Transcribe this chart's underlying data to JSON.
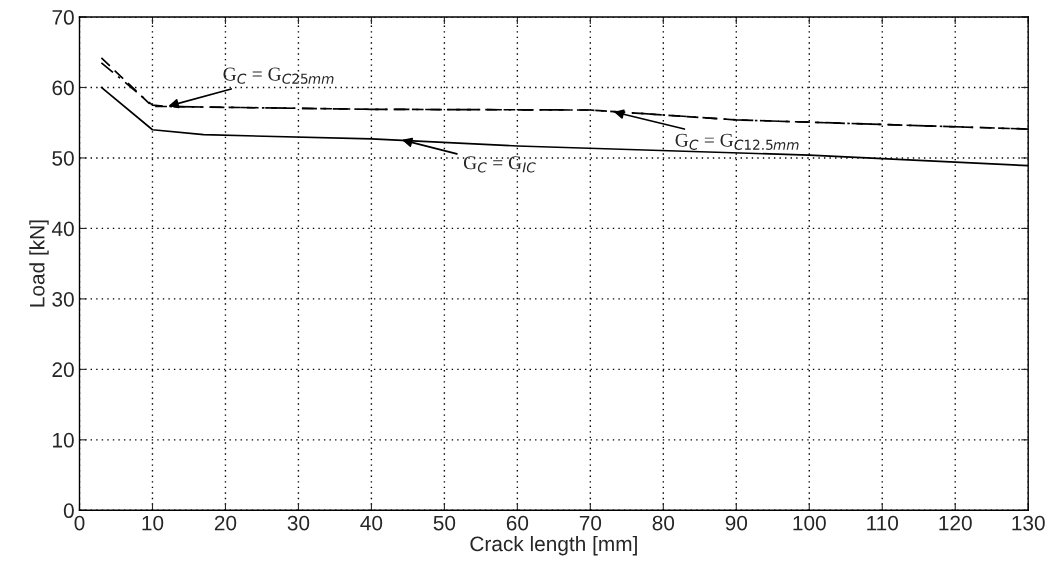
{
  "chart_data": {
    "type": "line",
    "xlabel": "Crack length [mm]",
    "ylabel": "Load [kN]",
    "xlim": [
      0,
      130
    ],
    "ylim": [
      0,
      70
    ],
    "xticks": [
      0,
      10,
      20,
      30,
      40,
      50,
      60,
      70,
      80,
      90,
      100,
      110,
      120,
      130
    ],
    "yticks": [
      0,
      10,
      20,
      30,
      40,
      50,
      60,
      70
    ],
    "grid": true,
    "legend": false,
    "marker": "none",
    "series": [
      {
        "color": "#000000",
        "line_style": "solid",
        "x": [
          3,
          10,
          17,
          40,
          60,
          100,
          130
        ],
        "values": [
          60,
          54,
          53.3,
          52.7,
          51.7,
          50.4,
          48.9
        ]
      },
      {
        "color": "#000000",
        "line_style": "dashed",
        "x": [
          3,
          10,
          12,
          40,
          70,
          90,
          130
        ],
        "values": [
          64.2,
          57.3,
          57.3,
          56.9,
          56.8,
          55.4,
          54.1
        ]
      },
      {
        "color": "#000000",
        "line_style": "dashdot",
        "x": [
          3,
          10,
          12,
          40,
          70,
          90,
          130
        ],
        "values": [
          63.5,
          57.5,
          57.3,
          56.9,
          56.8,
          55.4,
          54.1
        ]
      }
    ],
    "annotations": [
      {
        "text": "G$_{C}$ = G$_{C25mm}$",
        "x": 12,
        "y": 57.3
      },
      {
        "text": "G$_{C}$ = G$_{C12.5mm}$",
        "x": 73,
        "y": 56.6
      },
      {
        "text": "G$_{C}$ = G$_{IC}$",
        "x": 44,
        "y": 52.6
      }
    ]
  }
}
